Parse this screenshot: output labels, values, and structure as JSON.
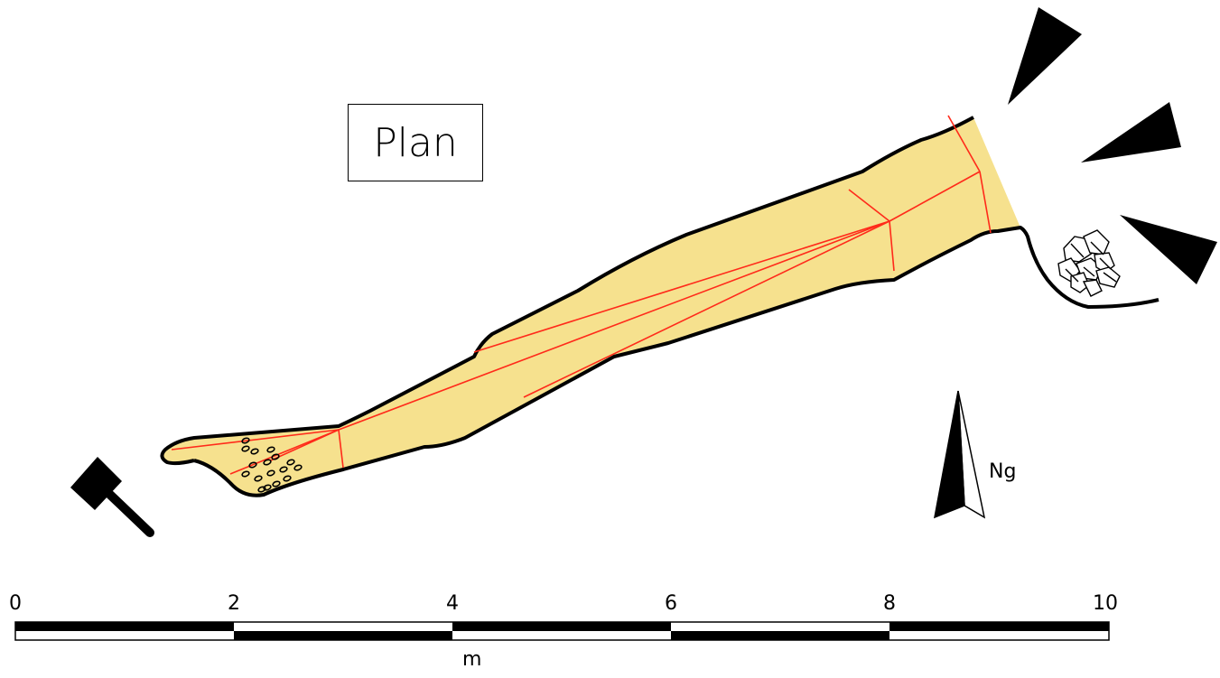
{
  "title": "Plan",
  "north": {
    "label": "Ng"
  },
  "scale_bar": {
    "ticks": [
      "0",
      "2",
      "4",
      "6",
      "8",
      "10"
    ],
    "unit": "m"
  },
  "colors": {
    "fill": "#f6e18e",
    "outline": "#000000",
    "line": "#ff2a1a"
  },
  "icons": [
    "hammer-icon",
    "boulder-cluster-icon",
    "shade-wedge-icon",
    "north-arrow-icon"
  ]
}
